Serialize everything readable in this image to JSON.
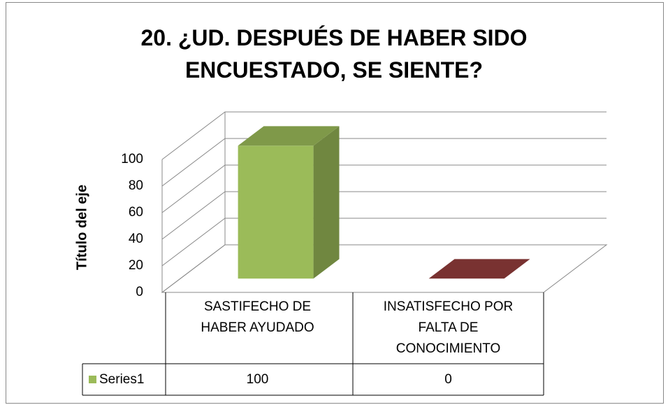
{
  "chart_data": {
    "type": "bar3d",
    "title": [
      "20. ¿UD. DESPUÉS DE HABER SIDO",
      "ENCUESTADO, SE SIENTE?"
    ],
    "y_axis_label": "Título del eje",
    "categories": [
      "SASTIFECHO DE HABER AYUDADO",
      "INSATISFECHO POR FALTA DE CONOCIMIENTO"
    ],
    "series": [
      {
        "name": "Series1",
        "color": "#9bbb59",
        "point_colors": [
          "#9bbb59",
          "#c0504d"
        ],
        "values": [
          100,
          0
        ]
      }
    ],
    "ylim": [
      0,
      100
    ],
    "yticks": [
      0,
      20,
      40,
      60,
      80,
      100
    ],
    "grid": true,
    "data_table": true
  }
}
